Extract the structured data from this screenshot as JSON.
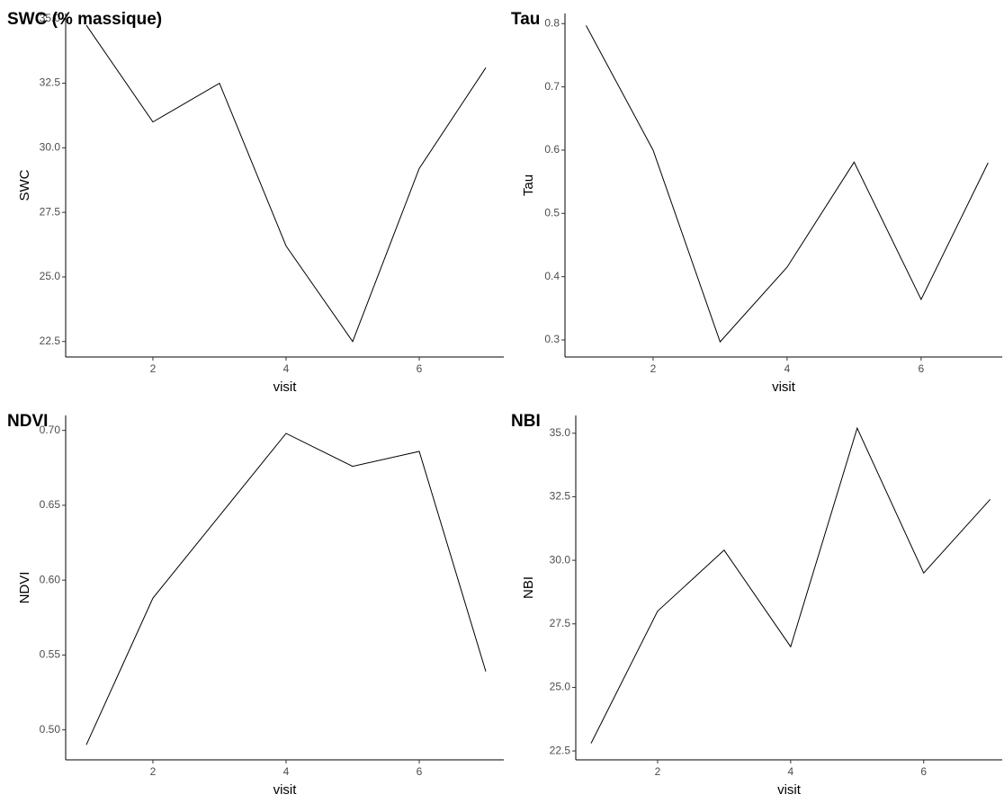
{
  "chart_data": [
    {
      "type": "line",
      "title": "SWC (% massique)",
      "x_label": "visit",
      "y_label": "SWC",
      "x": [
        1,
        2,
        3,
        4,
        5,
        6,
        7
      ],
      "values": [
        34.75,
        31.0,
        32.5,
        26.2,
        22.5,
        29.2,
        33.1
      ],
      "color": "#000000",
      "xlim": [
        0.69,
        7.27
      ],
      "xticks": [
        2,
        4,
        6
      ],
      "ylim": [
        21.9,
        35.2
      ],
      "yticks": [
        {
          "value": 22.5,
          "label": "22.5"
        },
        {
          "value": 25,
          "label": "25.0"
        },
        {
          "value": 27.5,
          "label": "27.5"
        },
        {
          "value": 30,
          "label": "30.0"
        },
        {
          "value": 32.5,
          "label": "32.5"
        },
        {
          "value": 35,
          "label": "35.0"
        }
      ],
      "grid": false
    },
    {
      "type": "line",
      "title": "Tau",
      "x_label": "visit",
      "y_label": "Tau",
      "x": [
        1,
        2,
        3,
        4,
        5,
        6,
        7
      ],
      "values": [
        0.797,
        0.6,
        0.297,
        0.415,
        0.581,
        0.364,
        0.58
      ],
      "color": "#000000",
      "xlim": [
        0.685,
        7.21
      ],
      "xticks": [
        2,
        4,
        6
      ],
      "ylim": [
        0.273,
        0.816
      ],
      "yticks": [
        0.3,
        0.4,
        0.5,
        0.6,
        0.7,
        0.8
      ],
      "grid": false
    },
    {
      "type": "line",
      "title": "NDVI",
      "x_label": "visit",
      "y_label": "NDVI",
      "x": [
        1,
        2,
        3,
        4,
        5,
        6,
        7
      ],
      "values": [
        0.49,
        0.588,
        0.643,
        0.698,
        0.676,
        0.686,
        0.539
      ],
      "color": "#000000",
      "xlim": [
        0.69,
        7.27
      ],
      "xticks": [
        2,
        4,
        6
      ],
      "ylim": [
        0.48,
        0.71
      ],
      "yticks": [
        {
          "value": 0.5,
          "label": "0.50"
        },
        0.55,
        {
          "value": 0.6,
          "label": "0.60"
        },
        0.65,
        {
          "value": 0.7,
          "label": "0.70"
        }
      ],
      "grid": false
    },
    {
      "type": "line",
      "title": "NBI",
      "x_label": "visit",
      "y_label": "NBI",
      "x": [
        1,
        2,
        3,
        4,
        5,
        6,
        7
      ],
      "values": [
        22.8,
        28.0,
        30.4,
        26.6,
        35.2,
        29.5,
        32.4
      ],
      "color": "#000000",
      "xlim": [
        0.77,
        7.18
      ],
      "xticks": [
        2,
        4,
        6
      ],
      "ylim": [
        22.15,
        35.7
      ],
      "yticks": [
        {
          "value": 22.5,
          "label": "22.5"
        },
        {
          "value": 25,
          "label": "25.0"
        },
        {
          "value": 27.5,
          "label": "27.5"
        },
        {
          "value": 30,
          "label": "30.0"
        },
        {
          "value": 32.5,
          "label": "32.5"
        },
        {
          "value": 35,
          "label": "35.0"
        }
      ],
      "grid": false
    }
  ]
}
